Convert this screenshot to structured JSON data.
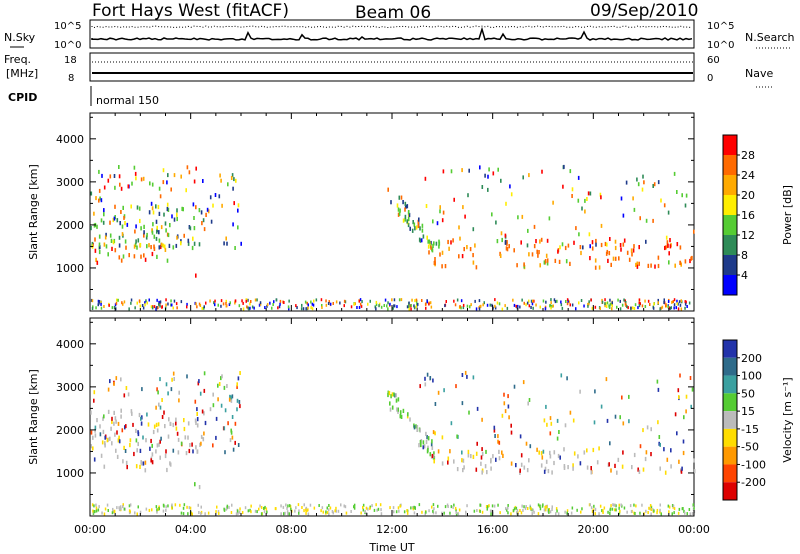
{
  "header": {
    "station": "Fort Hays West (fitACF)",
    "beam": "Beam 06",
    "date": "09/Sep/2010"
  },
  "status_panels": {
    "nsky_label": "N.Sky",
    "nsearch_label": "N.Search",
    "noise_ticks_left": [
      "10^5",
      "10^0"
    ],
    "noise_ticks_right": [
      "10^5",
      "10^0"
    ],
    "freq_label_1": "Freq.",
    "freq_label_2": "[MHz]",
    "freq_ticks": [
      "18",
      "8"
    ],
    "nave_label": "Nave",
    "nave_ticks": [
      "60",
      "0"
    ],
    "cpid_label": "CPID",
    "cpid_value": "normal 150"
  },
  "chart_data": [
    {
      "type": "heatmap",
      "name": "power",
      "xlabel": "Time UT",
      "ylabel": "Slant Range [km]",
      "x_ticks": [
        "00:00",
        "04:00",
        "08:00",
        "12:00",
        "16:00",
        "20:00",
        "00:00"
      ],
      "y_ticks": [
        1000,
        2000,
        3000,
        4000
      ],
      "ylim": [
        0,
        4600
      ],
      "xlim_hours": [
        0,
        24
      ],
      "colorbar_label": "Power [dB]",
      "colorbar_ticks": [
        28,
        24,
        20,
        16,
        12,
        8,
        4
      ],
      "colorbar_colors": [
        "#ff0000",
        "#ff6a00",
        "#ffaa00",
        "#ffee00",
        "#55cc33",
        "#2e8b57",
        "#1e3a8a",
        "#0000ff"
      ],
      "echo_regions": [
        {
          "t_start": 0.0,
          "t_end": 3.3,
          "r_min": 1100,
          "r_max": 1600,
          "dominant": "orange"
        },
        {
          "t_start": 0.0,
          "t_end": 4.6,
          "r_min": 1500,
          "r_max": 2500,
          "dominant": "green"
        },
        {
          "t_start": 4.0,
          "t_end": 4.9,
          "r_min": 820,
          "r_max": 900,
          "dominant": "red"
        },
        {
          "t_start": 11.8,
          "t_end": 13.7,
          "r_min": 1100,
          "r_max": 2600,
          "dominant": "green"
        },
        {
          "t_start": 13.5,
          "t_end": 24.0,
          "r_min": 1050,
          "r_max": 1700,
          "dominant": "orange"
        }
      ]
    },
    {
      "type": "heatmap",
      "name": "velocity",
      "xlabel": "Time UT",
      "ylabel": "Slant Range [km]",
      "x_ticks": [
        "00:00",
        "04:00",
        "08:00",
        "12:00",
        "16:00",
        "20:00",
        "00:00"
      ],
      "y_ticks": [
        1000,
        2000,
        3000,
        4000
      ],
      "ylim": [
        0,
        4600
      ],
      "xlim_hours": [
        0,
        24
      ],
      "colorbar_label": "Velocity [m s⁻¹]",
      "colorbar_ticks": [
        200,
        100,
        50,
        15,
        -15,
        -50,
        -100,
        -200
      ],
      "colorbar_colors": [
        "#2233aa",
        "#2e6b8a",
        "#3aa0a0",
        "#55cc33",
        "#bbbbbb",
        "#ffdd00",
        "#ff9900",
        "#ff4400",
        "#dd0000"
      ],
      "echo_regions": [
        {
          "t_start": 0.0,
          "t_end": 3.3,
          "r_min": 1100,
          "r_max": 1500,
          "dominant": "grey"
        },
        {
          "t_start": 0.0,
          "t_end": 4.6,
          "r_min": 1500,
          "r_max": 2500,
          "dominant": "grey"
        },
        {
          "t_start": 4.0,
          "t_end": 4.9,
          "r_min": 700,
          "r_max": 850,
          "dominant": "green"
        },
        {
          "t_start": 11.8,
          "t_end": 13.7,
          "r_min": 1100,
          "r_max": 2600,
          "dominant": "green"
        },
        {
          "t_start": 13.5,
          "t_end": 24.0,
          "r_min": 1050,
          "r_max": 1600,
          "dominant": "grey"
        }
      ]
    }
  ]
}
